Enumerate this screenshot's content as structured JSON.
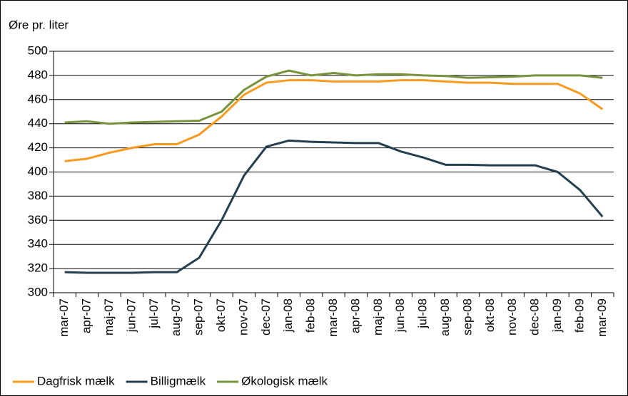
{
  "chart_data": {
    "type": "line",
    "y_label": "Øre pr. liter",
    "categories": [
      "mar-07",
      "apr-07",
      "maj-07",
      "jun-07",
      "jul-07",
      "aug-07",
      "sep-07",
      "okt-07",
      "nov-07",
      "dec-07",
      "jan-08",
      "feb-08",
      "mar-08",
      "apr-08",
      "maj-08",
      "jun-08",
      "jul-08",
      "aug-08",
      "sep-08",
      "okt-08",
      "nov-08",
      "dec-08",
      "jan-09",
      "feb-09",
      "mar-09"
    ],
    "series": [
      {
        "name": "Dagfrisk mælk",
        "color": "#f79a1e",
        "values": [
          409,
          411,
          416,
          420,
          423,
          423,
          431,
          446,
          464,
          474,
          476,
          476,
          475,
          475,
          475,
          476,
          476,
          475,
          474,
          474,
          473,
          473,
          473,
          465,
          452
        ]
      },
      {
        "name": "Billigmælk",
        "color": "#243f4f",
        "values": [
          317,
          316.5,
          316.5,
          316.5,
          317,
          317,
          329,
          360,
          397,
          421,
          426,
          425,
          424.5,
          424,
          424,
          417,
          412,
          406,
          406,
          405.5,
          405.5,
          405.5,
          400,
          385,
          363
        ]
      },
      {
        "name": "Økologisk mælk",
        "color": "#77933c",
        "values": [
          441,
          442,
          440,
          441,
          441.5,
          442,
          442.5,
          450,
          468,
          479,
          484,
          480,
          482,
          480,
          481,
          481,
          480,
          479.5,
          478,
          478.5,
          479,
          480,
          480,
          480,
          478
        ]
      }
    ],
    "ylim": [
      300,
      500
    ],
    "yticks": [
      300,
      320,
      340,
      360,
      380,
      400,
      420,
      440,
      460,
      480,
      500
    ],
    "grid": true,
    "legend": "bottom"
  }
}
